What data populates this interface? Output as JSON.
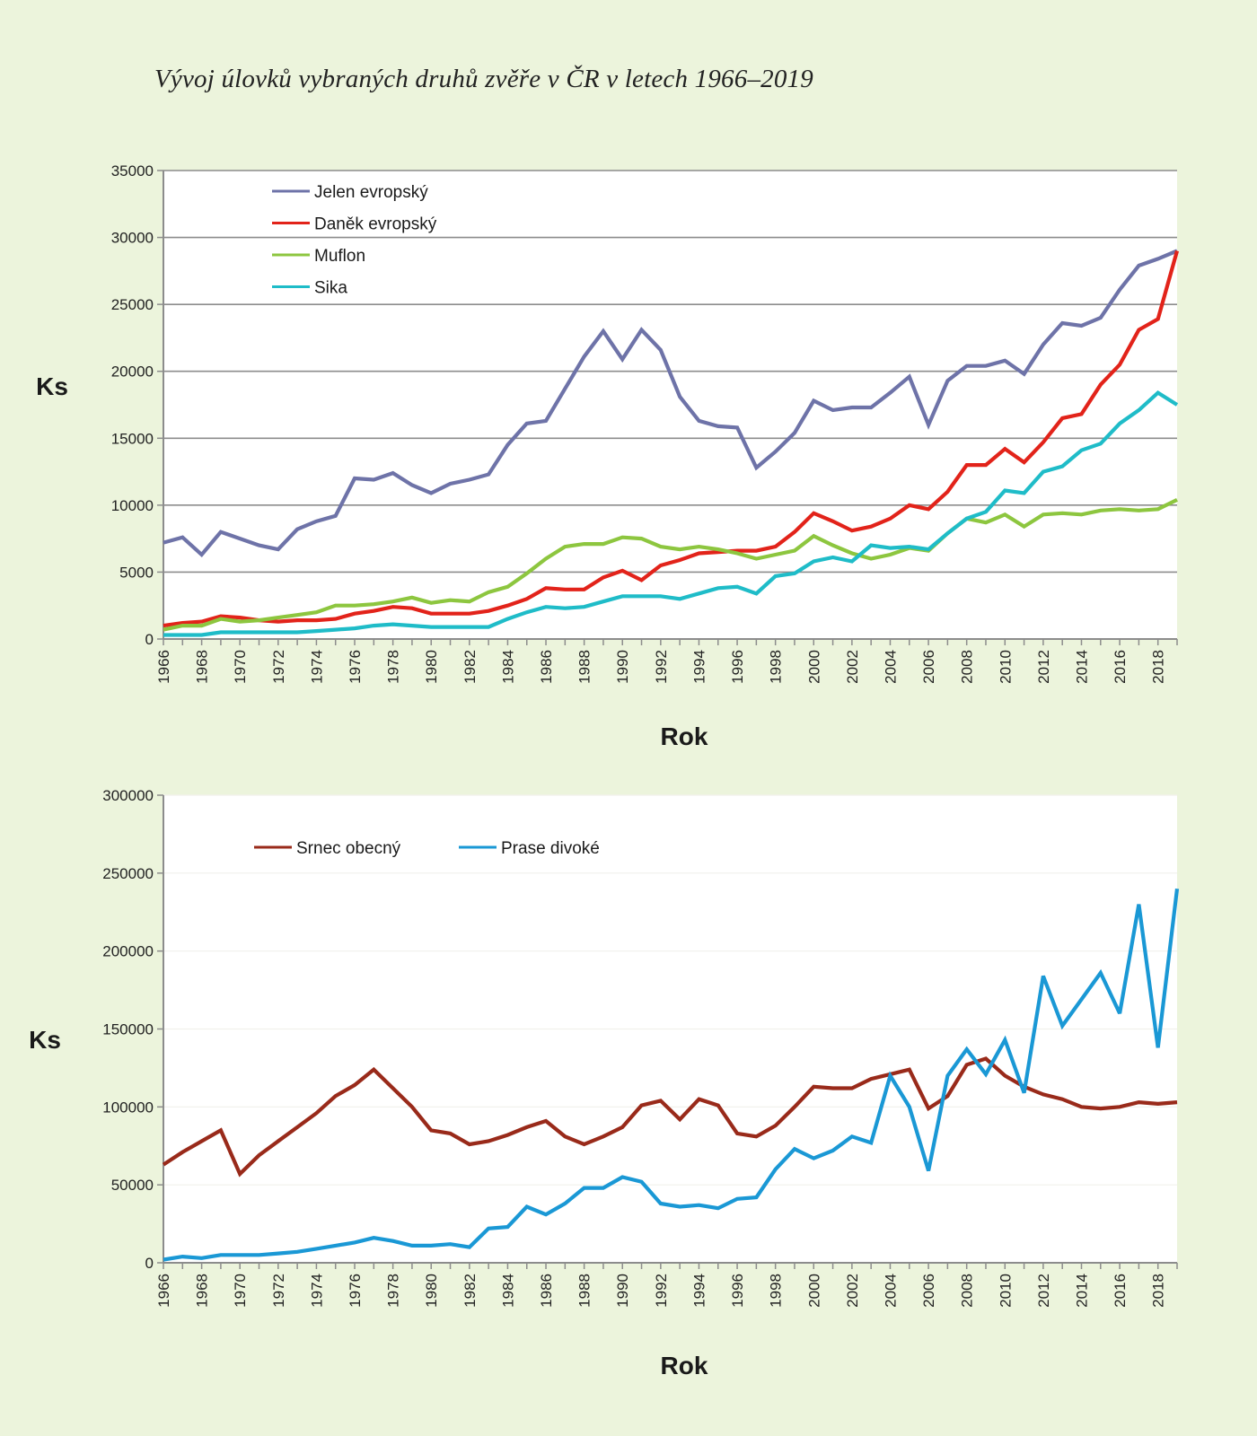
{
  "title": "Vývoj úlovků vybraných druhů zvěře v ČR v letech 1966–2019",
  "chart_data": [
    {
      "type": "line",
      "title": "",
      "xlabel": "Rok",
      "ylabel": "Ks",
      "ylim": [
        0,
        35000
      ],
      "yticks": [
        0,
        5000,
        10000,
        15000,
        20000,
        25000,
        30000,
        35000
      ],
      "grid": true,
      "legend_position": "top-left",
      "x": [
        1966,
        1967,
        1968,
        1969,
        1970,
        1971,
        1972,
        1973,
        1974,
        1975,
        1976,
        1977,
        1978,
        1979,
        1980,
        1981,
        1982,
        1983,
        1984,
        1985,
        1986,
        1987,
        1988,
        1989,
        1990,
        1991,
        1992,
        1993,
        1994,
        1995,
        1996,
        1997,
        1998,
        1999,
        2000,
        2001,
        2002,
        2003,
        2004,
        2005,
        2006,
        2007,
        2008,
        2009,
        2010,
        2011,
        2012,
        2013,
        2014,
        2015,
        2016,
        2017,
        2018,
        2019
      ],
      "xtick_labels": [
        "1966",
        "1968",
        "1970",
        "1972",
        "1974",
        "1976",
        "1978",
        "1980",
        "1982",
        "1984",
        "1986",
        "1988",
        "1990",
        "1992",
        "1994",
        "1996",
        "1998",
        "2000",
        "2002",
        "2004",
        "2006",
        "2008",
        "2010",
        "2012",
        "2014",
        "2016",
        "2018"
      ],
      "series": [
        {
          "name": "Jelen evropský",
          "color": "#6e73a8",
          "values": [
            7200,
            7600,
            6300,
            8000,
            7500,
            7000,
            6700,
            8200,
            8800,
            9200,
            12000,
            11900,
            12400,
            11500,
            10900,
            11600,
            11900,
            12300,
            14500,
            16100,
            16300,
            18700,
            21100,
            23000,
            20900,
            23100,
            21600,
            18100,
            16300,
            15900,
            15800,
            12800,
            14000,
            15400,
            17800,
            17100,
            17300,
            17300,
            18400,
            19600,
            16000,
            19300,
            20400,
            20400,
            20800,
            19800,
            22000,
            23600,
            23400,
            24000,
            26100,
            27900,
            28400,
            29000
          ]
        },
        {
          "name": "Daněk evropský",
          "color": "#e2231a",
          "values": [
            1000,
            1200,
            1300,
            1700,
            1600,
            1400,
            1300,
            1400,
            1400,
            1500,
            1900,
            2100,
            2400,
            2300,
            1900,
            1900,
            1900,
            2100,
            2500,
            3000,
            3800,
            3700,
            3700,
            4600,
            5100,
            4400,
            5500,
            5900,
            6400,
            6500,
            6600,
            6600,
            6900,
            8000,
            9400,
            8800,
            8100,
            8400,
            9000,
            10000,
            9700,
            11000,
            13000,
            13000,
            14200,
            13200,
            14700,
            16500,
            16800,
            19000,
            20500,
            23100,
            23900,
            29000
          ]
        },
        {
          "name": "Muflon",
          "color": "#8dc63f",
          "values": [
            700,
            1000,
            1000,
            1500,
            1300,
            1400,
            1600,
            1800,
            2000,
            2500,
            2500,
            2600,
            2800,
            3100,
            2700,
            2900,
            2800,
            3500,
            3900,
            4900,
            6000,
            6900,
            7100,
            7100,
            7600,
            7500,
            6900,
            6700,
            6900,
            6700,
            6400,
            6000,
            6300,
            6600,
            7700,
            7000,
            6400,
            6000,
            6300,
            6800,
            6600,
            7900,
            9000,
            8700,
            9300,
            8400,
            9300,
            9400,
            9300,
            9600,
            9700,
            9600,
            9700,
            10400
          ]
        },
        {
          "name": "Sika",
          "color": "#1fbcc8",
          "values": [
            300,
            300,
            300,
            500,
            500,
            500,
            500,
            500,
            600,
            700,
            800,
            1000,
            1100,
            1000,
            900,
            900,
            900,
            900,
            1500,
            2000,
            2400,
            2300,
            2400,
            2800,
            3200,
            3200,
            3200,
            3000,
            3400,
            3800,
            3900,
            3400,
            4700,
            4900,
            5800,
            6100,
            5800,
            7000,
            6800,
            6900,
            6700,
            7900,
            9000,
            9500,
            11100,
            10900,
            12500,
            12900,
            14100,
            14600,
            16100,
            17100,
            18400,
            17500
          ]
        }
      ]
    },
    {
      "type": "line",
      "title": "",
      "xlabel": "Rok",
      "ylabel": "Ks",
      "ylim": [
        0,
        300000
      ],
      "yticks": [
        0,
        50000,
        100000,
        150000,
        200000,
        250000,
        300000
      ],
      "grid": true,
      "legend_position": "top-left",
      "x": [
        1966,
        1967,
        1968,
        1969,
        1970,
        1971,
        1972,
        1973,
        1974,
        1975,
        1976,
        1977,
        1978,
        1979,
        1980,
        1981,
        1982,
        1983,
        1984,
        1985,
        1986,
        1987,
        1988,
        1989,
        1990,
        1991,
        1992,
        1993,
        1994,
        1995,
        1996,
        1997,
        1998,
        1999,
        2000,
        2001,
        2002,
        2003,
        2004,
        2005,
        2006,
        2007,
        2008,
        2009,
        2010,
        2011,
        2012,
        2013,
        2014,
        2015,
        2016,
        2017,
        2018,
        2019
      ],
      "xtick_labels": [
        "1966",
        "1968",
        "1970",
        "1972",
        "1974",
        "1976",
        "1978",
        "1980",
        "1982",
        "1984",
        "1986",
        "1988",
        "1990",
        "1992",
        "1994",
        "1996",
        "1998",
        "2000",
        "2002",
        "2004",
        "2006",
        "2008",
        "2010",
        "2012",
        "2014",
        "2016",
        "2018"
      ],
      "series": [
        {
          "name": "Srnec obecný",
          "color": "#992a1a",
          "values": [
            63000,
            71000,
            78000,
            85000,
            57000,
            69000,
            78000,
            87000,
            96000,
            107000,
            114000,
            124000,
            112000,
            100000,
            85000,
            83000,
            76000,
            78000,
            82000,
            87000,
            91000,
            81000,
            76000,
            81000,
            87000,
            101000,
            104000,
            92000,
            105000,
            101000,
            83000,
            81000,
            88000,
            100000,
            113000,
            112000,
            112000,
            118000,
            121000,
            124000,
            99000,
            107000,
            127000,
            131000,
            120000,
            113000,
            108000,
            105000,
            100000,
            99000,
            100000,
            103000,
            102000,
            103000
          ]
        },
        {
          "name": "Prase divoké",
          "color": "#1a98d5",
          "values": [
            2000,
            4000,
            3000,
            5000,
            5000,
            5000,
            6000,
            7000,
            9000,
            11000,
            13000,
            16000,
            14000,
            11000,
            11000,
            12000,
            10000,
            22000,
            23000,
            36000,
            31000,
            38000,
            48000,
            48000,
            55000,
            52000,
            38000,
            36000,
            37000,
            35000,
            41000,
            42000,
            60000,
            73000,
            67000,
            72000,
            81000,
            77000,
            120000,
            100000,
            59000,
            120000,
            137000,
            121000,
            143000,
            109000,
            184000,
            152000,
            169000,
            186000,
            160000,
            230000,
            138000,
            240000
          ]
        }
      ]
    }
  ]
}
